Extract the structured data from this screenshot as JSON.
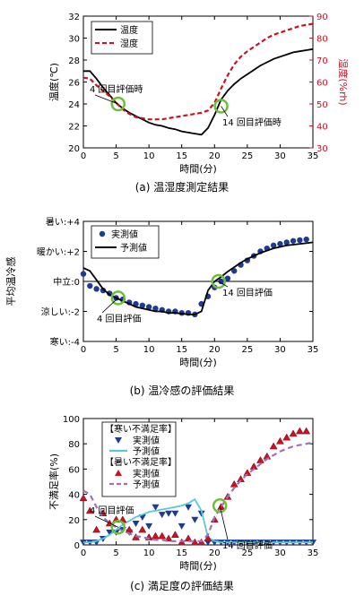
{
  "chart_data": [
    {
      "type": "line",
      "caption": "(a) 温湿度測定結果",
      "xlabel": "時間(分)",
      "ylabel": "温度(℃)",
      "y2label": "湿度(%rh)",
      "xlim": [
        0,
        35
      ],
      "ylim": [
        20,
        32
      ],
      "y2lim": [
        30,
        90
      ],
      "xticks": [
        0,
        5,
        10,
        15,
        20,
        25,
        30,
        35
      ],
      "yticks": [
        20,
        22,
        24,
        26,
        28,
        30,
        32
      ],
      "y2ticks": [
        30,
        40,
        50,
        60,
        70,
        80,
        90
      ],
      "legend_position": "top-left",
      "series": [
        {
          "name": "温度",
          "axis": "left",
          "color": "#000000",
          "style": "solid",
          "x": [
            0,
            1,
            2,
            3,
            4,
            5,
            6,
            7,
            8,
            9,
            10,
            11,
            12,
            13,
            14,
            15,
            16,
            17,
            18,
            19,
            20,
            21,
            22,
            23,
            24,
            25,
            26,
            27,
            28,
            29,
            30,
            31,
            32,
            33,
            34,
            35
          ],
          "y": [
            27.0,
            27.0,
            26.3,
            25.5,
            24.8,
            24.1,
            23.6,
            23.2,
            22.9,
            22.6,
            22.3,
            22.1,
            22.0,
            21.8,
            21.7,
            21.5,
            21.4,
            21.3,
            21.2,
            21.8,
            23.0,
            24.4,
            25.2,
            25.8,
            26.3,
            26.7,
            27.1,
            27.5,
            27.8,
            28.1,
            28.3,
            28.5,
            28.7,
            28.8,
            28.9,
            29.0
          ]
        },
        {
          "name": "湿度",
          "axis": "right",
          "color": "#cc1122",
          "style": "dashed",
          "x": [
            0,
            1,
            2,
            3,
            4,
            5,
            6,
            7,
            8,
            9,
            10,
            11,
            12,
            13,
            14,
            15,
            16,
            17,
            18,
            19,
            20,
            21,
            22,
            23,
            24,
            25,
            26,
            27,
            28,
            29,
            30,
            31,
            32,
            33,
            34,
            35
          ],
          "y": [
            62.0,
            61.5,
            58.5,
            56.0,
            53.5,
            50.5,
            47.5,
            45.5,
            44.0,
            43.5,
            43.0,
            43.0,
            43.0,
            43.5,
            44.0,
            44.5,
            45.0,
            45.5,
            46.0,
            47.0,
            50.5,
            57.0,
            63.0,
            68.0,
            71.5,
            74.0,
            76.0,
            78.0,
            80.0,
            81.5,
            82.5,
            83.5,
            84.5,
            85.5,
            86.0,
            86.5
          ]
        }
      ],
      "markers": [
        {
          "x": 5.3,
          "y": 24.0,
          "label": "4 回目評価時"
        },
        {
          "x": 21.0,
          "y": 23.8,
          "label": "14 回目評価時"
        }
      ]
    },
    {
      "type": "line",
      "caption": "(b) 温冷感の評価結果",
      "xlabel": "時間(分)",
      "ylabel": "平均温冷感",
      "xlim": [
        0,
        35
      ],
      "ylim": [
        -4,
        4
      ],
      "xticks": [
        0,
        5,
        10,
        15,
        20,
        25,
        30,
        35
      ],
      "yticks": [
        -4,
        -2,
        0,
        2,
        4
      ],
      "ytick_labels": [
        "寒い:-4",
        "涼しい:-2",
        "中立:0",
        "暖かい:+2",
        "暑い:+4"
      ],
      "legend_position": "top-left",
      "series": [
        {
          "name": "実測値",
          "kind": "scatter",
          "color": "#1f3a93",
          "x": [
            0,
            1,
            2,
            3,
            4,
            5,
            6,
            7,
            8,
            9,
            10,
            11,
            12,
            13,
            14,
            15,
            16,
            17,
            18,
            19,
            20,
            21,
            22,
            23,
            24,
            25,
            26,
            27,
            28,
            29,
            30,
            31,
            32,
            33,
            34
          ],
          "y": [
            0.5,
            -0.3,
            -0.5,
            -0.6,
            -0.8,
            -1.1,
            -1.2,
            -1.4,
            -1.5,
            -1.6,
            -1.7,
            -1.8,
            -1.9,
            -2.0,
            -2.0,
            -2.1,
            -2.1,
            -2.2,
            -1.5,
            -1.0,
            -0.4,
            0.0,
            0.2,
            0.7,
            1.1,
            1.4,
            1.7,
            2.0,
            2.2,
            2.4,
            2.5,
            2.6,
            2.7,
            2.75,
            2.8
          ]
        },
        {
          "name": "予測値",
          "kind": "line",
          "color": "#000000",
          "x": [
            0,
            1,
            2,
            3,
            4,
            5,
            6,
            7,
            8,
            9,
            10,
            11,
            12,
            13,
            14,
            15,
            16,
            17,
            18,
            19,
            20,
            21,
            22,
            23,
            24,
            25,
            26,
            27,
            28,
            29,
            30,
            31,
            32,
            33,
            34,
            35
          ],
          "y": [
            0.9,
            0.7,
            0.1,
            -0.5,
            -0.9,
            -1.1,
            -1.3,
            -1.5,
            -1.7,
            -1.8,
            -1.9,
            -2.0,
            -2.0,
            -2.1,
            -2.1,
            -2.15,
            -2.2,
            -2.2,
            -2.0,
            -0.6,
            0.0,
            0.3,
            0.65,
            0.95,
            1.25,
            1.5,
            1.7,
            1.9,
            2.05,
            2.2,
            2.3,
            2.4,
            2.45,
            2.5,
            2.55,
            2.6
          ]
        }
      ],
      "markers": [
        {
          "x": 5.3,
          "y": -1.1,
          "label": "4 回目評価"
        },
        {
          "x": 20.6,
          "y": 0.0,
          "label": "14 回目評価"
        }
      ]
    },
    {
      "type": "line",
      "caption": "(c) 満足度の評価結果",
      "xlabel": "時間(分)",
      "ylabel": "不満足率(%)",
      "xlim": [
        0,
        35
      ],
      "ylim": [
        0,
        100
      ],
      "xticks": [
        0,
        5,
        10,
        15,
        20,
        25,
        30,
        35
      ],
      "yticks": [
        0,
        20,
        40,
        60,
        80,
        100
      ],
      "legend_position": "top-left",
      "legend_groups": [
        "【寒い不満足率】",
        "【暑い不満足率】"
      ],
      "series": [
        {
          "name": "実測値",
          "group": 0,
          "kind": "scatter",
          "marker": "triangle-down",
          "color": "#1f3a93",
          "x": [
            0,
            1,
            2,
            3,
            4,
            5,
            6,
            7,
            8,
            9,
            10,
            11,
            12,
            13,
            14,
            15,
            16,
            17,
            18,
            19,
            20,
            21,
            22,
            23,
            24,
            25,
            26,
            27,
            28,
            29,
            30,
            31,
            32,
            33,
            34,
            35
          ],
          "y": [
            2,
            2,
            2,
            5,
            10,
            10,
            12,
            10,
            17,
            22,
            15,
            30,
            24,
            25,
            25,
            15,
            30,
            20,
            25,
            2,
            2,
            2,
            2,
            2,
            2,
            2,
            2,
            2,
            2,
            2,
            2,
            2,
            2,
            2,
            2,
            2
          ]
        },
        {
          "name": "予測値",
          "group": 0,
          "kind": "line",
          "style": "solid",
          "color": "#5bc8d6",
          "x": [
            0,
            1,
            2,
            3,
            4,
            5,
            6,
            7,
            8,
            9,
            10,
            11,
            12,
            13,
            14,
            15,
            16,
            17,
            18,
            19,
            20,
            21,
            22,
            23,
            24,
            25,
            26,
            27,
            28,
            29,
            30,
            31,
            32,
            33,
            34,
            35
          ],
          "y": [
            2,
            2,
            3,
            5,
            8,
            12,
            16,
            19,
            22,
            24,
            26,
            27,
            28,
            29,
            30,
            31,
            33,
            36,
            27,
            6,
            3,
            2,
            2,
            2,
            2,
            2,
            2,
            2,
            2,
            2,
            2,
            2,
            2,
            2,
            2,
            2
          ]
        },
        {
          "name": "実測値",
          "group": 1,
          "kind": "scatter",
          "marker": "triangle-up",
          "color": "#cc1122",
          "x": [
            0,
            1,
            2,
            3,
            4,
            5,
            6,
            7,
            8,
            9,
            10,
            11,
            12,
            13,
            14,
            15,
            16,
            17,
            18,
            19,
            20,
            21,
            22,
            23,
            24,
            25,
            26,
            27,
            28,
            29,
            30,
            31,
            32,
            33,
            34
          ],
          "y": [
            37,
            27,
            12,
            25,
            17,
            20,
            20,
            12,
            6,
            12,
            6,
            7,
            7,
            5,
            8,
            2,
            5,
            2,
            2,
            5,
            20,
            30,
            38,
            48,
            52,
            57,
            62,
            67,
            70,
            78,
            82,
            85,
            88,
            90,
            90
          ]
        },
        {
          "name": "予測値",
          "group": 1,
          "kind": "line",
          "style": "dashed",
          "color": "#a070b8",
          "x": [
            0,
            1,
            2,
            3,
            4,
            5,
            6,
            7,
            8,
            9,
            10,
            11,
            12,
            13,
            14,
            15,
            16,
            17,
            18,
            19,
            20,
            21,
            22,
            23,
            24,
            25,
            26,
            27,
            28,
            29,
            30,
            31,
            32,
            33,
            34,
            35
          ],
          "y": [
            43,
            40,
            30,
            22,
            17,
            14,
            11,
            9,
            7,
            6,
            5,
            4,
            4,
            3,
            3,
            3,
            3,
            3,
            3,
            8,
            22,
            30,
            38,
            45,
            51,
            56,
            60,
            64,
            68,
            71,
            74,
            76,
            78,
            79,
            80,
            81
          ]
        }
      ],
      "markers": [
        {
          "x": 5.3,
          "y": 14.0,
          "label": "4 回目評価"
        },
        {
          "x": 20.8,
          "y": 31.0,
          "label": "14 回目評価"
        }
      ]
    }
  ]
}
